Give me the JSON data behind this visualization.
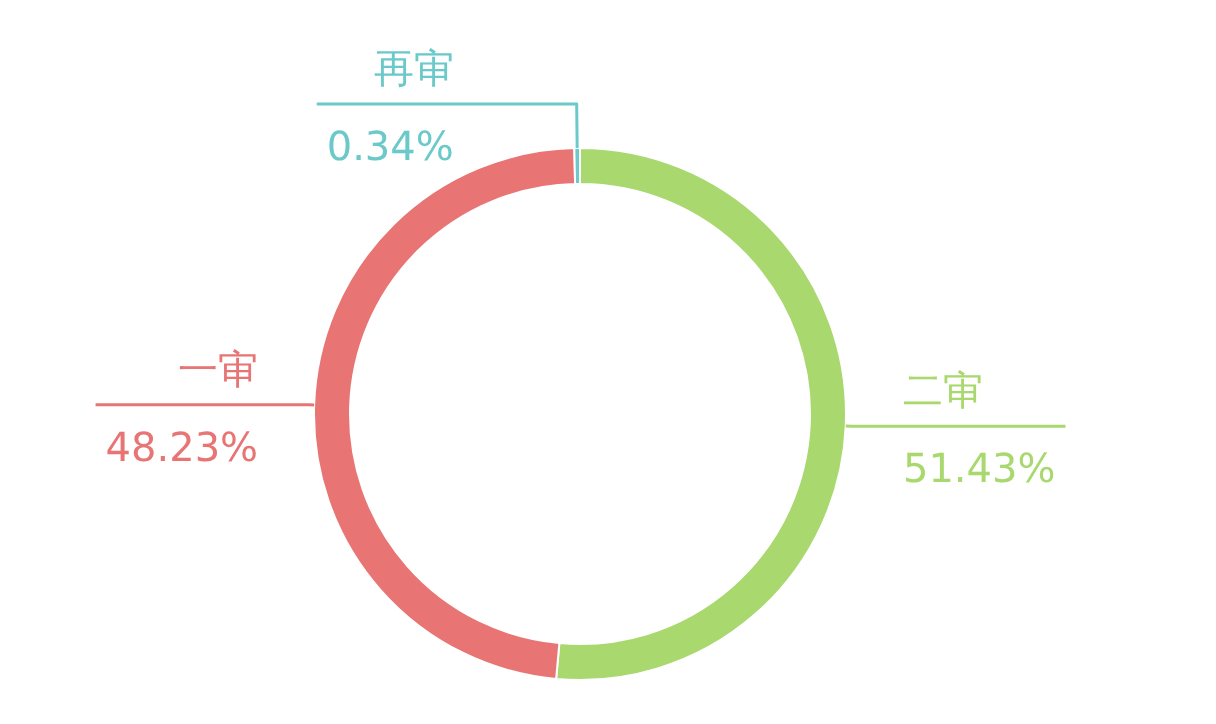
{
  "chart_data": {
    "type": "donut",
    "categories": [
      "二审",
      "一审",
      "再审"
    ],
    "values": [
      51.43,
      48.23,
      0.34
    ],
    "colors": [
      "#a8d86e",
      "#e87474",
      "#6bc9c9"
    ],
    "value_labels": [
      "51.43%",
      "48.23%",
      "0.34%"
    ]
  }
}
